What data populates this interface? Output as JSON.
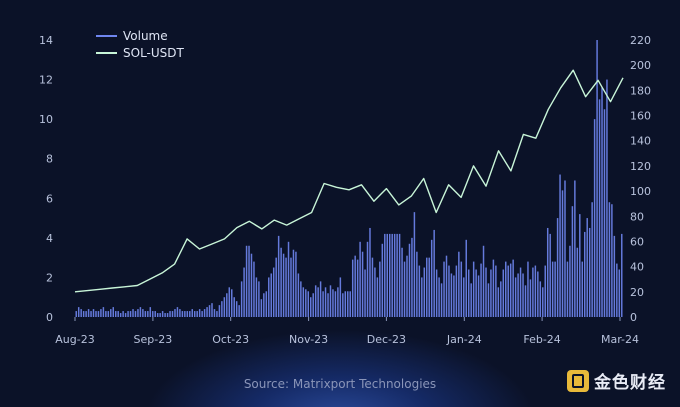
{
  "chart_data": {
    "type": "bar+line",
    "title": "",
    "x_tick_labels": [
      "Aug-23",
      "Sep-23",
      "Oct-23",
      "Nov-23",
      "Dec-23",
      "Jan-24",
      "Feb-24",
      "Mar-24"
    ],
    "left_axis": {
      "ylim": [
        0,
        14
      ],
      "ticks": [
        0,
        2,
        4,
        6,
        8,
        10,
        12,
        14
      ]
    },
    "right_axis": {
      "ylim": [
        0,
        220
      ],
      "ticks": [
        0,
        20,
        40,
        60,
        80,
        100,
        120,
        140,
        160,
        180,
        200,
        220
      ]
    },
    "legend": {
      "placement": "top-left",
      "entries": [
        "Volume",
        "SOL-USDT"
      ]
    },
    "series": [
      {
        "name": "Volume",
        "type": "bar",
        "axis": "left",
        "color": "#6f86f0",
        "values": [
          0.3,
          0.5,
          0.4,
          0.3,
          0.3,
          0.4,
          0.3,
          0.4,
          0.3,
          0.3,
          0.4,
          0.5,
          0.3,
          0.3,
          0.4,
          0.5,
          0.3,
          0.3,
          0.2,
          0.3,
          0.2,
          0.3,
          0.3,
          0.4,
          0.3,
          0.4,
          0.5,
          0.4,
          0.3,
          0.3,
          0.5,
          0.3,
          0.3,
          0.2,
          0.2,
          0.3,
          0.2,
          0.2,
          0.3,
          0.3,
          0.4,
          0.5,
          0.4,
          0.3,
          0.3,
          0.3,
          0.3,
          0.4,
          0.3,
          0.3,
          0.4,
          0.3,
          0.4,
          0.5,
          0.6,
          0.7,
          0.4,
          0.3,
          0.6,
          0.8,
          1.0,
          1.2,
          1.5,
          1.4,
          1.0,
          0.8,
          0.6,
          1.8,
          2.5,
          3.6,
          3.6,
          3.2,
          2.8,
          2.0,
          1.8,
          0.9,
          1.2,
          1.3,
          2.0,
          2.2,
          2.5,
          3.0,
          4.1,
          3.5,
          3.2,
          3.0,
          3.8,
          3.0,
          3.4,
          3.3,
          2.2,
          1.8,
          1.5,
          1.4,
          1.3,
          1.0,
          1.2,
          1.6,
          1.5,
          1.8,
          1.3,
          1.5,
          1.2,
          1.6,
          1.4,
          1.3,
          1.5,
          2.0,
          1.2,
          1.3,
          1.3,
          1.3,
          2.9,
          3.1,
          2.9,
          3.8,
          3.3,
          2.4,
          3.8,
          4.5,
          3.0,
          2.5,
          2.0,
          2.8,
          3.7,
          4.2,
          4.2,
          4.2,
          4.2,
          4.2,
          4.2,
          4.2,
          3.5,
          2.8,
          3.1,
          3.7,
          4.0,
          5.3,
          3.3,
          2.6,
          2.0,
          2.5,
          3.0,
          3.0,
          3.9,
          4.4,
          2.4,
          2.0,
          1.7,
          2.8,
          3.1,
          2.6,
          2.2,
          2.1,
          2.6,
          3.3,
          2.8,
          2.0,
          3.9,
          2.4,
          1.7,
          2.8,
          2.4,
          2.1,
          2.7,
          3.6,
          2.5,
          1.7,
          2.4,
          2.9,
          2.6,
          1.5,
          1.8,
          2.4,
          2.8,
          2.6,
          2.7,
          2.9,
          2.0,
          2.2,
          2.5,
          2.2,
          1.6,
          2.8,
          1.9,
          2.5,
          2.6,
          2.3,
          1.8,
          1.5,
          2.6,
          4.5,
          4.2,
          2.8,
          2.8,
          5.0,
          7.2,
          6.4,
          6.9,
          2.8,
          3.6,
          5.6,
          6.9,
          3.5,
          5.2,
          2.8,
          4.3,
          5.0,
          4.5,
          5.8,
          10.0,
          14.0,
          11.0,
          11.6,
          10.5,
          12.0,
          5.8,
          5.7,
          4.1,
          2.7,
          2.4,
          4.2
        ]
      },
      {
        "name": "SOL-USDT",
        "type": "line",
        "axis": "right",
        "color": "#c8f5d8",
        "values": [
          20,
          21,
          22,
          23,
          24,
          25,
          30,
          35,
          42,
          62,
          54,
          58,
          62,
          71,
          76,
          70,
          77,
          73,
          78,
          83,
          106,
          103,
          101,
          105,
          92,
          102,
          89,
          96,
          110,
          83,
          105,
          95,
          120,
          104,
          132,
          116,
          145,
          142,
          165,
          182,
          196,
          175,
          188,
          171,
          190
        ]
      }
    ]
  },
  "source_caption": "Source: Matrixport Technologies",
  "logo_text": "金色财经"
}
